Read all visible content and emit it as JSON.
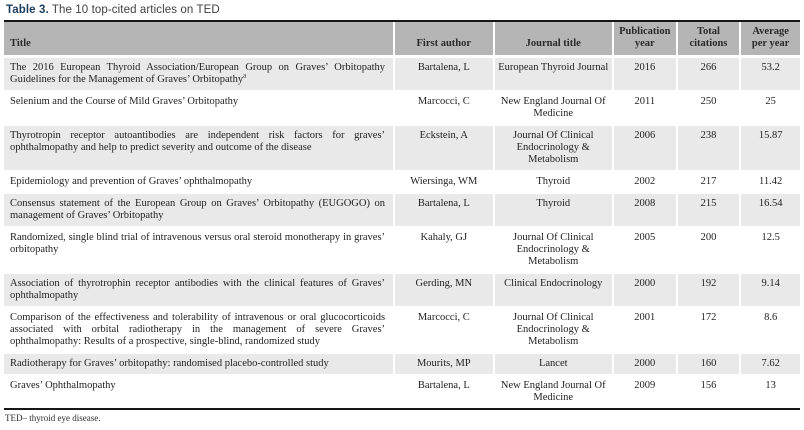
{
  "caption": {
    "label": "Table 3.",
    "text": "The 10 top-cited articles on TED"
  },
  "table": {
    "columns": [
      "Title",
      "First author",
      "Journal title",
      "Publication year",
      "Total citations",
      "Average per year"
    ],
    "rows": [
      {
        "title": "The 2016 European Thyroid Association/European Group on Graves’ Orbitopathy Guidelines for the Management of Graves’ Orbitopathy",
        "marker": "a",
        "first_author": "Bartalena, L",
        "journal": "European Thyroid Journal",
        "year": "2016",
        "citations": "266",
        "avg": "53.2"
      },
      {
        "title": "Selenium and the Course of Mild Graves’ Orbitopathy",
        "first_author": "Marcocci, C",
        "journal": "New England Journal Of Medicine",
        "year": "2011",
        "citations": "250",
        "avg": "25"
      },
      {
        "title": "Thyrotropin receptor autoantibodies are independent risk factors for graves’ ophthalmopathy and help to predict severity and outcome of the disease",
        "first_author": "Eckstein, A",
        "journal": "Journal Of Clinical Endocrinology & Metabolism",
        "year": "2006",
        "citations": "238",
        "avg": "15.87"
      },
      {
        "title": "Epidemiology and prevention of Graves’ ophthalmopathy",
        "first_author": "Wiersinga, WM",
        "journal": "Thyroid",
        "year": "2002",
        "citations": "217",
        "avg": "11.42"
      },
      {
        "title": "Consensus statement of the European Group on Graves’ Orbitopathy (EUGOGO) on management of Graves’ Orbitopathy",
        "first_author": "Bartalena, L",
        "journal": "Thyroid",
        "year": "2008",
        "citations": "215",
        "avg": "16.54"
      },
      {
        "title": "Randomized, single blind trial of intravenous versus oral steroid monotherapy in graves’ orbitopathy",
        "first_author": "Kahaly, GJ",
        "journal": "Journal Of Clinical Endocrinology & Metabolism",
        "year": "2005",
        "citations": "200",
        "avg": "12.5"
      },
      {
        "title": "Association of thyrotrophin receptor antibodies with the clinical features of Graves’ ophthalmopathy",
        "first_author": "Gerding, MN",
        "journal": "Clinical Endocrinology",
        "year": "2000",
        "citations": "192",
        "avg": "9.14"
      },
      {
        "title": "Comparison of the effectiveness and tolerability of intravenous or oral glucocorticoids associated with orbital radiotherapy in the management of severe Graves’ ophthalmopathy: Results of a prospective, single-blind, randomized study",
        "first_author": "Marcocci, C",
        "journal": "Journal Of Clinical Endocrinology & Metabolism",
        "year": "2001",
        "citations": "172",
        "avg": "8.6"
      },
      {
        "title": "Radiotherapy for Graves’ orbitopathy: randomised placebo-controlled study",
        "first_author": "Mourits, MP",
        "journal": "Lancet",
        "year": "2000",
        "citations": "160",
        "avg": "7.62"
      },
      {
        "title": "Graves’ Ophthalmopathy",
        "first_author": "Bartalena, L",
        "journal": "New England Journal Of Medicine",
        "year": "2009",
        "citations": "156",
        "avg": "13"
      }
    ]
  },
  "footnote": "TED– thyroid eye disease.",
  "colors": {
    "caption_accent": "#1a3e5c",
    "header_bg": "#b5b5b5",
    "row_alt_bg": "#e9e9e9",
    "table_border": "#161616"
  }
}
